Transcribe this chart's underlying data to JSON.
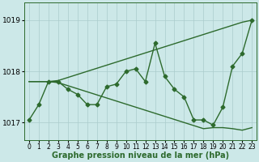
{
  "x": [
    0,
    1,
    2,
    3,
    4,
    5,
    6,
    7,
    8,
    9,
    10,
    11,
    12,
    13,
    14,
    15,
    16,
    17,
    18,
    19,
    20,
    21,
    22,
    23
  ],
  "series": {
    "main": [
      1017.05,
      1017.35,
      1017.8,
      1017.8,
      1017.65,
      1017.55,
      1017.35,
      1017.35,
      1017.7,
      1017.75,
      1018.0,
      1018.05,
      1017.8,
      1018.55,
      1017.9,
      1017.65,
      1017.5,
      1017.05,
      1017.05,
      1016.95,
      1017.3,
      1018.1,
      1018.35,
      1019.0
    ],
    "upper": [
      1017.8,
      1017.8,
      1017.8,
      1017.82,
      1017.88,
      1017.94,
      1018.0,
      1018.06,
      1018.12,
      1018.18,
      1018.24,
      1018.3,
      1018.36,
      1018.42,
      1018.48,
      1018.54,
      1018.6,
      1018.66,
      1018.72,
      1018.78,
      1018.84,
      1018.9,
      1018.96,
      1019.0
    ],
    "lower": [
      1017.8,
      1017.8,
      1017.8,
      1017.78,
      1017.72,
      1017.66,
      1017.6,
      1017.54,
      1017.48,
      1017.42,
      1017.36,
      1017.3,
      1017.24,
      1017.18,
      1017.12,
      1017.06,
      1017.0,
      1016.94,
      1016.88,
      1016.9,
      1016.9,
      1016.88,
      1016.85,
      1016.9
    ]
  },
  "line_color": "#2d6a2d",
  "bg_color": "#cce8e8",
  "grid_color": "#aacccc",
  "xlabel": "Graphe pression niveau de la mer (hPa)",
  "ylim": [
    1016.65,
    1019.35
  ],
  "yticks": [
    1017,
    1018,
    1019
  ],
  "xticks": [
    0,
    1,
    2,
    3,
    4,
    5,
    6,
    7,
    8,
    9,
    10,
    11,
    12,
    13,
    14,
    15,
    16,
    17,
    18,
    19,
    20,
    21,
    22,
    23
  ],
  "marker": "D",
  "markersize": 2.5,
  "linewidth": 1.0,
  "xlabel_fontsize": 7,
  "ytick_fontsize": 6.5,
  "xtick_fontsize": 5.5
}
